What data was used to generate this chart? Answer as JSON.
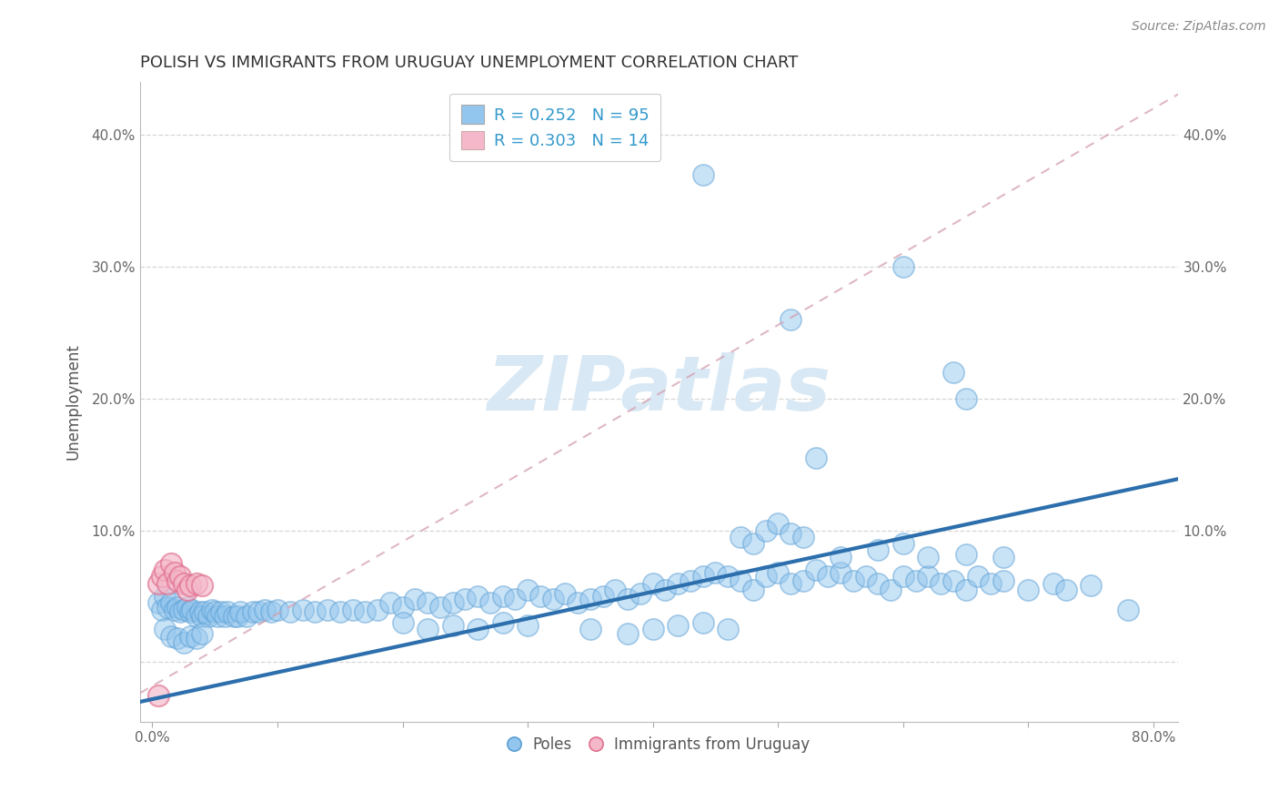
{
  "title": "POLISH VS IMMIGRANTS FROM URUGUAY UNEMPLOYMENT CORRELATION CHART",
  "source": "Source: ZipAtlas.com",
  "ylabel": "Unemployment",
  "xlim": [
    -0.01,
    0.82
  ],
  "ylim": [
    -0.045,
    0.44
  ],
  "xtick_positions": [
    0.0,
    0.1,
    0.2,
    0.3,
    0.4,
    0.5,
    0.6,
    0.7,
    0.8
  ],
  "xticklabels": [
    "0.0%",
    "",
    "",
    "",
    "",
    "",
    "",
    "",
    "80.0%"
  ],
  "ytick_positions": [
    0.0,
    0.1,
    0.2,
    0.3,
    0.4
  ],
  "yticklabels_left": [
    "",
    "10.0%",
    "20.0%",
    "30.0%",
    "40.0%"
  ],
  "yticklabels_right": [
    "",
    "10.0%",
    "20.0%",
    "30.0%",
    "40.0%"
  ],
  "blue_color": "#93C6EE",
  "blue_edge": "#5B9FD4",
  "pink_color": "#F4B8CA",
  "pink_edge": "#E07090",
  "trend_blue": "#2C6FAC",
  "trend_pink": "#D4A0B0",
  "watermark_color": "#D8E8F4",
  "watermark_text": "ZIPatlas",
  "legend_labels": [
    "R = 0.252   N = 95",
    "R = 0.303   N = 14"
  ],
  "bottom_legend_labels": [
    "Poles",
    "Immigrants from Uruguay"
  ],
  "blue_trend_x0": 0.0,
  "blue_trend_y0": -0.028,
  "blue_trend_x1": 0.8,
  "blue_trend_y1": 0.135,
  "pink_trend_x0": 0.0,
  "pink_trend_y0": -0.018,
  "pink_trend_x1": 0.8,
  "pink_trend_y1": 0.42,
  "poles_x": [
    0.005,
    0.008,
    0.01,
    0.012,
    0.015,
    0.018,
    0.02,
    0.022,
    0.025,
    0.028,
    0.03,
    0.032,
    0.035,
    0.038,
    0.04,
    0.042,
    0.045,
    0.048,
    0.05,
    0.052,
    0.055,
    0.058,
    0.06,
    0.065,
    0.068,
    0.07,
    0.075,
    0.08,
    0.085,
    0.09,
    0.095,
    0.1,
    0.11,
    0.12,
    0.13,
    0.14,
    0.15,
    0.16,
    0.17,
    0.18,
    0.19,
    0.2,
    0.21,
    0.22,
    0.23,
    0.24,
    0.25,
    0.26,
    0.27,
    0.28,
    0.29,
    0.3,
    0.31,
    0.32,
    0.33,
    0.34,
    0.35,
    0.36,
    0.37,
    0.38,
    0.39,
    0.4,
    0.41,
    0.42,
    0.43,
    0.44,
    0.45,
    0.46,
    0.47,
    0.48,
    0.49,
    0.5,
    0.51,
    0.52,
    0.53,
    0.54,
    0.55,
    0.56,
    0.57,
    0.58,
    0.59,
    0.6,
    0.61,
    0.62,
    0.63,
    0.64,
    0.65,
    0.66,
    0.67,
    0.68,
    0.7,
    0.72,
    0.73,
    0.75,
    0.78
  ],
  "poles_y": [
    0.045,
    0.04,
    0.05,
    0.042,
    0.045,
    0.04,
    0.042,
    0.038,
    0.04,
    0.042,
    0.038,
    0.04,
    0.035,
    0.038,
    0.035,
    0.038,
    0.035,
    0.04,
    0.038,
    0.035,
    0.038,
    0.035,
    0.038,
    0.035,
    0.035,
    0.038,
    0.035,
    0.038,
    0.038,
    0.04,
    0.038,
    0.04,
    0.038,
    0.04,
    0.038,
    0.04,
    0.038,
    0.04,
    0.038,
    0.04,
    0.045,
    0.042,
    0.048,
    0.045,
    0.042,
    0.045,
    0.048,
    0.05,
    0.045,
    0.05,
    0.048,
    0.055,
    0.05,
    0.048,
    0.052,
    0.045,
    0.048,
    0.05,
    0.055,
    0.048,
    0.052,
    0.06,
    0.055,
    0.06,
    0.062,
    0.065,
    0.068,
    0.065,
    0.062,
    0.055,
    0.065,
    0.068,
    0.06,
    0.062,
    0.07,
    0.065,
    0.068,
    0.062,
    0.065,
    0.06,
    0.055,
    0.065,
    0.062,
    0.065,
    0.06,
    0.062,
    0.055,
    0.065,
    0.06,
    0.062,
    0.055,
    0.06,
    0.055,
    0.058,
    0.04
  ],
  "poles_x_extra": [
    0.01,
    0.015,
    0.02,
    0.025,
    0.03,
    0.035,
    0.04,
    0.2,
    0.22,
    0.24,
    0.26,
    0.28,
    0.3,
    0.35,
    0.38,
    0.4,
    0.42,
    0.44,
    0.46,
    0.47,
    0.48,
    0.49,
    0.5,
    0.51,
    0.52,
    0.55,
    0.58,
    0.6,
    0.62,
    0.65,
    0.68
  ],
  "poles_y_extra": [
    0.025,
    0.02,
    0.018,
    0.015,
    0.02,
    0.018,
    0.022,
    0.03,
    0.025,
    0.028,
    0.025,
    0.03,
    0.028,
    0.025,
    0.022,
    0.025,
    0.028,
    0.03,
    0.025,
    0.095,
    0.09,
    0.1,
    0.105,
    0.098,
    0.095,
    0.08,
    0.085,
    0.09,
    0.08,
    0.082,
    0.08
  ],
  "poles_x_outliers": [
    0.44,
    0.51,
    0.6,
    0.64,
    0.65,
    0.53
  ],
  "poles_y_outliers": [
    0.37,
    0.26,
    0.3,
    0.22,
    0.2,
    0.155
  ],
  "uruguay_x": [
    0.005,
    0.008,
    0.01,
    0.012,
    0.015,
    0.018,
    0.02,
    0.022,
    0.025,
    0.028,
    0.03,
    0.035,
    0.04,
    0.005
  ],
  "uruguay_y": [
    0.06,
    0.065,
    0.07,
    0.06,
    0.075,
    0.068,
    0.062,
    0.065,
    0.06,
    0.055,
    0.058,
    0.06,
    0.058,
    -0.025
  ]
}
